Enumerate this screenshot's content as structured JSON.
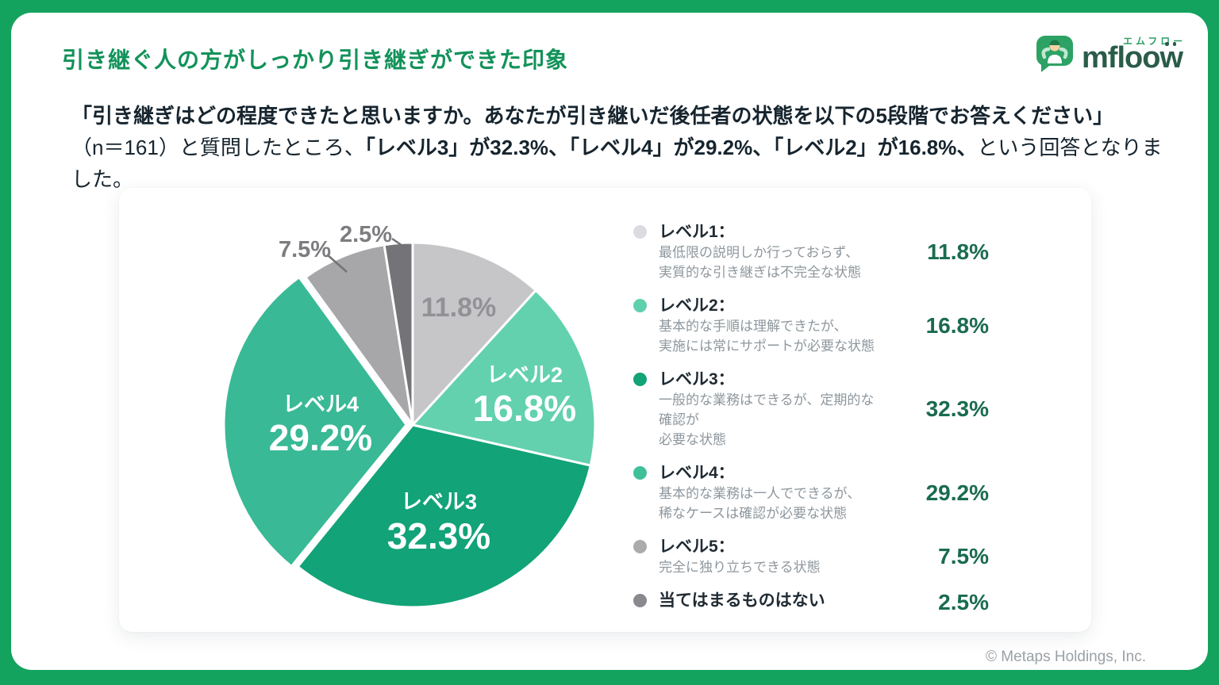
{
  "title": "引き継ぐ人の方がしっかり引き継ぎができた印象",
  "logo": {
    "brand": "mfloow",
    "kana": "エムフロー"
  },
  "intro": {
    "line1": "「引き継ぎはどの程度できたと思いますか。あなたが引き継いだ後任者の状態を以下の5段階でお答えください」",
    "seg2": "（n＝161）と質問したところ、",
    "seg3": "「レベル3」が32.3%、「レベル4」が29.2%、「レベル2」が16.8%、",
    "seg4": "という回答となりました。"
  },
  "chart_data": {
    "type": "pie",
    "categories": [
      "レベル1",
      "レベル2",
      "レベル3",
      "レベル4",
      "レベル5",
      "当てはまるものはない"
    ],
    "values": [
      11.8,
      16.8,
      32.3,
      29.2,
      7.5,
      2.5
    ],
    "unit": "%",
    "colors": [
      "#c6c5c8",
      "#63d1ae",
      "#12a378",
      "#39b996",
      "#a7a6a9",
      "#747377"
    ],
    "labels": [
      {
        "name": "レベル1",
        "pct": "11.8%"
      },
      {
        "name": "レベル2",
        "pct": "16.8%"
      },
      {
        "name": "レベル3",
        "pct": "32.3%"
      },
      {
        "name": "レベル4",
        "pct": "29.2%"
      },
      {
        "name": "レベル5",
        "pct": "7.5%"
      },
      {
        "name": "当てはまるものはない",
        "pct": "2.5%"
      }
    ],
    "start_angle_deg": 0,
    "direction": "clockwise",
    "exploded_slice": 3,
    "legend_position": "right",
    "n": 161
  },
  "legend": {
    "items": [
      {
        "label": "レベル1：",
        "desc1": "最低限の説明しか行っておらず、",
        "desc2": "実質的な引き継ぎは不完全な状態",
        "pct": "11.8%",
        "dot_color": "#dcdbdf"
      },
      {
        "label": "レベル2：",
        "desc1": "基本的な手順は理解できたが、",
        "desc2": "実施には常にサポートが必要な状態",
        "pct": "16.8%",
        "dot_color": "#5fd0ad"
      },
      {
        "label": "レベル3：",
        "desc1": "一般的な業務はできるが、定期的な確認が",
        "desc2": "必要な状態",
        "pct": "32.3%",
        "dot_color": "#12a378"
      },
      {
        "label": "レベル4：",
        "desc1": "基本的な業務は一人でできるが、",
        "desc2": "稀なケースは確認が必要な状態",
        "pct": "29.2%",
        "dot_color": "#3fc09b"
      },
      {
        "label": "レベル5：",
        "desc1": "完全に独り立ちできる状態",
        "desc2": "",
        "pct": "7.5%",
        "dot_color": "#ababae"
      },
      {
        "label": "当てはまるものはない",
        "desc1": "",
        "desc2": "",
        "pct": "2.5%",
        "dot_color": "#8a898d"
      }
    ]
  },
  "footer": "© Metaps Holdings, Inc.",
  "colors": {
    "frame_green": "#13a35e",
    "title_green": "#12925a",
    "legend_pct_green": "#1a6b4f",
    "body_text": "#16242e",
    "desc_gray": "#8e979d",
    "pie_label_gray": "#929196",
    "external_label_gray": "#7d7d81"
  }
}
